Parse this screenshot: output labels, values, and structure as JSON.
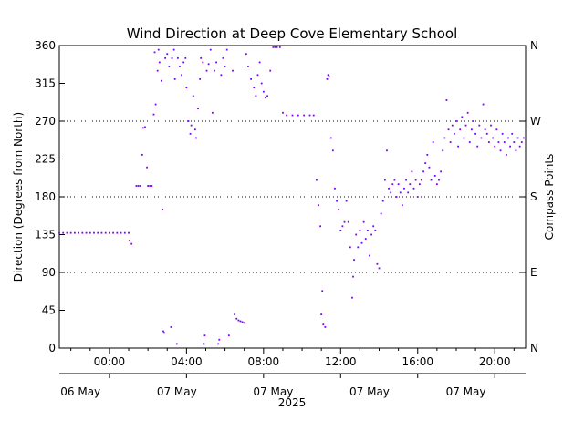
{
  "chart_data": {
    "type": "scatter",
    "title": "Wind Direction at Deep Cove Elementary School",
    "ylabel": "Direction (Degrees from North)",
    "ylabel_right": "Compass Points",
    "ylim": [
      0,
      360
    ],
    "yticks": [
      0,
      45,
      90,
      135,
      180,
      225,
      270,
      315,
      360
    ],
    "right_ticks": [
      {
        "value": 0,
        "label": "N"
      },
      {
        "value": 90,
        "label": "E"
      },
      {
        "value": 180,
        "label": "S"
      },
      {
        "value": 270,
        "label": "W"
      },
      {
        "value": 360,
        "label": "N"
      }
    ],
    "gridlines": [
      90,
      180,
      270
    ],
    "grid_style": "dotted",
    "xlim_hours": [
      -2.6,
      21.6
    ],
    "time_ticks": [
      {
        "hour": 0,
        "label": "00:00"
      },
      {
        "hour": 4,
        "label": "04:00"
      },
      {
        "hour": 8,
        "label": "08:00"
      },
      {
        "hour": 12,
        "label": "12:00"
      },
      {
        "hour": 16,
        "label": "16:00"
      },
      {
        "hour": 20,
        "label": "20:00"
      }
    ],
    "date_labels": [
      {
        "hour": -1.5,
        "label": "06 May"
      },
      {
        "hour": 3.5,
        "label": "07 May"
      },
      {
        "hour": 8.5,
        "label": "07 May"
      },
      {
        "hour": 13.5,
        "label": "07 May"
      },
      {
        "hour": 18.5,
        "label": "07 May"
      }
    ],
    "year_label": "2025",
    "marker_color": "#7a00ff",
    "points": [
      [
        -2.6,
        137
      ],
      [
        -2.4,
        137
      ],
      [
        -2.2,
        137
      ],
      [
        -2.0,
        137
      ],
      [
        -1.8,
        137
      ],
      [
        -1.6,
        137
      ],
      [
        -1.4,
        137
      ],
      [
        -1.2,
        137
      ],
      [
        -1.0,
        137
      ],
      [
        -0.8,
        137
      ],
      [
        -0.6,
        137
      ],
      [
        -0.4,
        137
      ],
      [
        -0.2,
        137
      ],
      [
        0.0,
        137
      ],
      [
        0.2,
        137
      ],
      [
        0.4,
        137
      ],
      [
        0.6,
        137
      ],
      [
        0.8,
        137
      ],
      [
        1.0,
        137
      ],
      [
        1.05,
        128
      ],
      [
        1.15,
        124
      ],
      [
        1.4,
        193
      ],
      [
        1.5,
        193
      ],
      [
        1.6,
        193
      ],
      [
        1.7,
        230
      ],
      [
        1.75,
        262
      ],
      [
        1.85,
        263
      ],
      [
        1.95,
        215
      ],
      [
        2.0,
        193
      ],
      [
        2.1,
        193
      ],
      [
        2.2,
        193
      ],
      [
        2.3,
        278
      ],
      [
        2.35,
        352
      ],
      [
        2.4,
        290
      ],
      [
        2.5,
        330
      ],
      [
        2.55,
        355
      ],
      [
        2.6,
        340
      ],
      [
        2.7,
        318
      ],
      [
        2.75,
        165
      ],
      [
        2.8,
        20
      ],
      [
        2.85,
        18
      ],
      [
        2.9,
        345
      ],
      [
        3.0,
        350
      ],
      [
        3.1,
        335
      ],
      [
        3.2,
        25
      ],
      [
        3.25,
        345
      ],
      [
        3.35,
        355
      ],
      [
        3.4,
        320
      ],
      [
        3.5,
        5
      ],
      [
        3.55,
        345
      ],
      [
        3.65,
        335
      ],
      [
        3.75,
        325
      ],
      [
        3.85,
        340
      ],
      [
        3.95,
        345
      ],
      [
        4.0,
        310
      ],
      [
        4.1,
        270
      ],
      [
        4.2,
        255
      ],
      [
        4.25,
        265
      ],
      [
        4.35,
        300
      ],
      [
        4.45,
        260
      ],
      [
        4.5,
        250
      ],
      [
        4.6,
        285
      ],
      [
        4.7,
        320
      ],
      [
        4.75,
        345
      ],
      [
        4.85,
        340
      ],
      [
        4.9,
        5
      ],
      [
        4.95,
        15
      ],
      [
        5.05,
        330
      ],
      [
        5.15,
        338
      ],
      [
        5.25,
        355
      ],
      [
        5.35,
        280
      ],
      [
        5.45,
        330
      ],
      [
        5.55,
        340
      ],
      [
        5.65,
        5
      ],
      [
        5.7,
        10
      ],
      [
        5.8,
        325
      ],
      [
        5.9,
        345
      ],
      [
        6.0,
        335
      ],
      [
        6.1,
        355
      ],
      [
        6.2,
        15
      ],
      [
        6.4,
        330
      ],
      [
        6.5,
        40
      ],
      [
        6.6,
        35
      ],
      [
        6.7,
        33
      ],
      [
        6.8,
        32
      ],
      [
        6.9,
        31
      ],
      [
        7.0,
        30
      ],
      [
        7.1,
        350
      ],
      [
        7.2,
        335
      ],
      [
        7.35,
        320
      ],
      [
        7.5,
        310
      ],
      [
        7.6,
        300
      ],
      [
        7.7,
        325
      ],
      [
        7.8,
        340
      ],
      [
        7.9,
        315
      ],
      [
        8.0,
        305
      ],
      [
        8.1,
        298
      ],
      [
        8.2,
        300
      ],
      [
        8.35,
        330
      ],
      [
        8.5,
        358
      ],
      [
        8.6,
        358
      ],
      [
        8.7,
        358
      ],
      [
        8.85,
        358
      ],
      [
        9.0,
        280
      ],
      [
        9.2,
        277
      ],
      [
        9.5,
        277
      ],
      [
        9.8,
        277
      ],
      [
        10.1,
        277
      ],
      [
        10.4,
        277
      ],
      [
        10.6,
        277
      ],
      [
        10.75,
        200
      ],
      [
        10.85,
        170
      ],
      [
        10.95,
        145
      ],
      [
        11.0,
        40
      ],
      [
        11.05,
        68
      ],
      [
        11.1,
        28
      ],
      [
        11.2,
        25
      ],
      [
        11.3,
        320
      ],
      [
        11.35,
        325
      ],
      [
        11.4,
        323
      ],
      [
        11.5,
        250
      ],
      [
        11.6,
        235
      ],
      [
        11.7,
        190
      ],
      [
        11.8,
        175
      ],
      [
        11.9,
        165
      ],
      [
        12.0,
        140
      ],
      [
        12.1,
        145
      ],
      [
        12.2,
        150
      ],
      [
        12.3,
        175
      ],
      [
        12.4,
        150
      ],
      [
        12.5,
        120
      ],
      [
        12.6,
        60
      ],
      [
        12.65,
        85
      ],
      [
        12.7,
        105
      ],
      [
        12.8,
        135
      ],
      [
        12.9,
        120
      ],
      [
        13.0,
        140
      ],
      [
        13.1,
        125
      ],
      [
        13.2,
        150
      ],
      [
        13.3,
        130
      ],
      [
        13.4,
        140
      ],
      [
        13.5,
        110
      ],
      [
        13.6,
        135
      ],
      [
        13.7,
        145
      ],
      [
        13.8,
        140
      ],
      [
        13.9,
        100
      ],
      [
        14.0,
        95
      ],
      [
        14.1,
        160
      ],
      [
        14.2,
        175
      ],
      [
        14.3,
        200
      ],
      [
        14.4,
        235
      ],
      [
        14.5,
        190
      ],
      [
        14.6,
        185
      ],
      [
        14.7,
        195
      ],
      [
        14.8,
        200
      ],
      [
        14.9,
        180
      ],
      [
        15.0,
        195
      ],
      [
        15.1,
        185
      ],
      [
        15.2,
        170
      ],
      [
        15.3,
        190
      ],
      [
        15.4,
        200
      ],
      [
        15.5,
        185
      ],
      [
        15.6,
        195
      ],
      [
        15.7,
        210
      ],
      [
        15.8,
        190
      ],
      [
        15.9,
        200
      ],
      [
        16.0,
        180
      ],
      [
        16.1,
        195
      ],
      [
        16.2,
        200
      ],
      [
        16.3,
        210
      ],
      [
        16.4,
        220
      ],
      [
        16.5,
        230
      ],
      [
        16.6,
        215
      ],
      [
        16.7,
        200
      ],
      [
        16.8,
        245
      ],
      [
        16.9,
        205
      ],
      [
        17.0,
        195
      ],
      [
        17.1,
        200
      ],
      [
        17.2,
        210
      ],
      [
        17.3,
        235
      ],
      [
        17.4,
        250
      ],
      [
        17.5,
        295
      ],
      [
        17.6,
        260
      ],
      [
        17.7,
        245
      ],
      [
        17.8,
        265
      ],
      [
        17.9,
        255
      ],
      [
        18.0,
        270
      ],
      [
        18.1,
        240
      ],
      [
        18.2,
        260
      ],
      [
        18.3,
        275
      ],
      [
        18.4,
        250
      ],
      [
        18.5,
        265
      ],
      [
        18.6,
        280
      ],
      [
        18.7,
        245
      ],
      [
        18.8,
        260
      ],
      [
        18.9,
        270
      ],
      [
        19.0,
        255
      ],
      [
        19.1,
        240
      ],
      [
        19.2,
        265
      ],
      [
        19.3,
        250
      ],
      [
        19.4,
        290
      ],
      [
        19.5,
        260
      ],
      [
        19.6,
        255
      ],
      [
        19.7,
        245
      ],
      [
        19.8,
        265
      ],
      [
        19.9,
        250
      ],
      [
        20.0,
        240
      ],
      [
        20.1,
        260
      ],
      [
        20.2,
        245
      ],
      [
        20.3,
        235
      ],
      [
        20.4,
        255
      ],
      [
        20.5,
        245
      ],
      [
        20.6,
        230
      ],
      [
        20.7,
        250
      ],
      [
        20.8,
        240
      ],
      [
        20.9,
        255
      ],
      [
        21.0,
        245
      ],
      [
        21.1,
        235
      ],
      [
        21.2,
        250
      ],
      [
        21.3,
        240
      ],
      [
        21.4,
        245
      ],
      [
        21.5,
        250
      ]
    ]
  }
}
